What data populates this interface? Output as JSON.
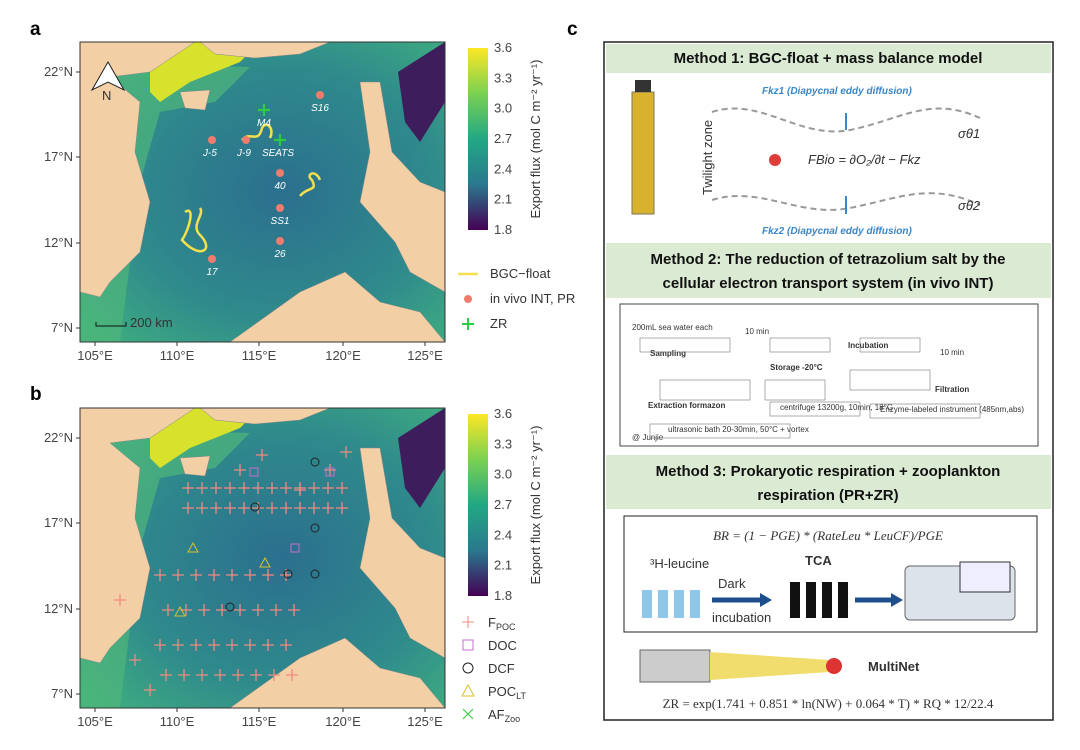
{
  "panel_a": {
    "label": "a",
    "north": "N",
    "scale": "200 km",
    "xticks": [
      "105°E",
      "110°E",
      "115°E",
      "120°E",
      "125°E"
    ],
    "yticks": [
      "22°N",
      "17°N",
      "12°N",
      "7°N"
    ],
    "colorbar": {
      "title": "Export flux (mol C m⁻² yr⁻¹)",
      "ticks": [
        "3.6",
        "3.3",
        "3.0",
        "2.7",
        "2.4",
        "2.1",
        "1.8"
      ]
    },
    "stations": [
      "M4",
      "S16",
      "J-5",
      "J-9",
      "SEATS",
      "40",
      "SS1",
      "26",
      "17"
    ],
    "legend": [
      "BGC−float",
      "in vivo INT, PR",
      "ZR"
    ]
  },
  "panel_b": {
    "label": "b",
    "xticks": [
      "105°E",
      "110°E",
      "115°E",
      "120°E",
      "125°E"
    ],
    "yticks": [
      "22°N",
      "17°N",
      "12°N",
      "7°N"
    ],
    "colorbar": {
      "title": "Export flux (mol C m⁻² yr⁻¹)",
      "ticks": [
        "3.6",
        "3.3",
        "3.0",
        "2.7",
        "2.4",
        "2.1",
        "1.8"
      ]
    },
    "legend": [
      {
        "main": "F",
        "sub": "POC"
      },
      {
        "main": "DOC",
        "sub": ""
      },
      {
        "main": "DCF",
        "sub": ""
      },
      {
        "main": "POC",
        "sub": "LT"
      },
      {
        "main": "AF",
        "sub": "Zoo"
      }
    ]
  },
  "panel_c": {
    "label": "c",
    "method1": {
      "title": "Method 1: BGC-float + mass balance model",
      "fkz1": "Fkz1 (Diapycnal eddy diffusion)",
      "fkz2": "Fkz2 (Diapycnal eddy diffusion)",
      "sigma1": "σθ1",
      "sigma2": "σθ2",
      "zone": "Twilight zone",
      "fbio": "FBio = ∂O₂/∂t − Fkz"
    },
    "method2": {
      "title_1": "Method 2: The reduction of tetrazolium salt by the",
      "title_2": "cellular electron transport system (in vivo INT)",
      "steps": [
        "200mL sea water each",
        "Sampling",
        "10 min",
        "Incubation",
        "10 min",
        "Storage -20°C",
        "Filtration",
        "Extraction formazon",
        "ultrasonic bath 20-30min, 50°C + vortex",
        "centrifuge 13200g, 10min, 18°C",
        "Enzyme-labeled instrument (485nm,abs)",
        "@ Junjie"
      ]
    },
    "method3": {
      "title_1": "Method 3: Prokaryotic respiration + zooplankton",
      "title_2": "respiration (PR+ZR)",
      "formula": "BR = (1 − PGE) * (RateLeu * LeuCF)/PGE",
      "leucine": "³H-leucine",
      "tca": "TCA",
      "dark": "Dark",
      "incubation": "incubation",
      "net": "MultiNet",
      "zr": "ZR = exp(1.741 + 0.851 * ln(NW) + 0.064 * T) * RQ * 12/22.4"
    }
  }
}
